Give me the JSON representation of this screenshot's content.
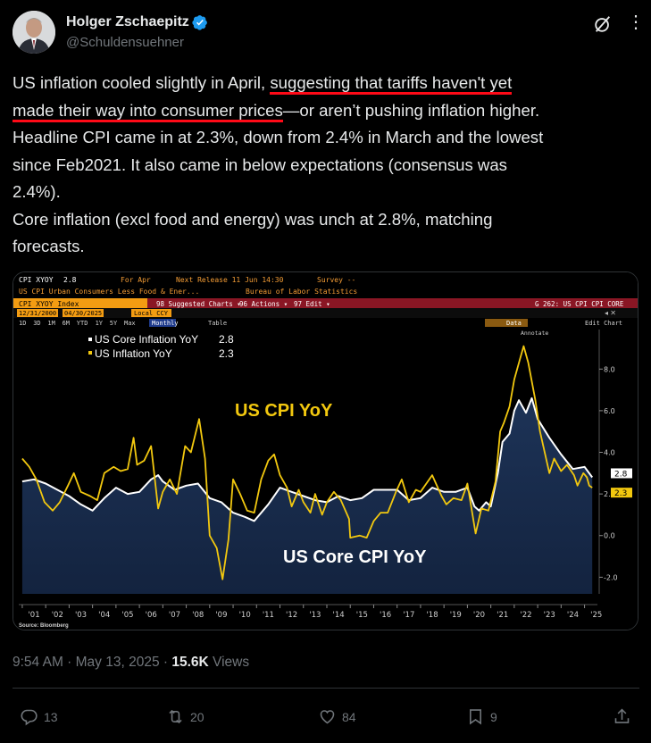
{
  "author": {
    "name": "Holger Zschaepitz",
    "handle": "@Schuldensuehner"
  },
  "tweet": {
    "line1_pre": "US inflation cooled slightly in April, ",
    "line1_ul": "suggesting that tariffs haven't yet",
    "line2_ul": "made their way into consumer prices",
    "line2_post": "—or aren’t pushing inflation higher.",
    "line3": "Headline CPI came in at 2.3%, down from 2.4% in March and the lowest",
    "line4": "since Feb2021. It also came in below expectations (consensus was",
    "line5": "2.4%).",
    "line6": "Core inflation (excl food and energy) was unch at 2.8%, matching",
    "line7": "forecasts."
  },
  "bloomberg": {
    "ticker": "CPI XYOY",
    "ticker_value": "2.8",
    "for_label": "For Apr",
    "next_release": "Next Release 11 Jun 14:30",
    "survey": "Survey --",
    "subtitle": "US CPI Urban Consumers Less Food & Ener...",
    "source_agency": "Bureau of Labor Statistics",
    "index_label": "CPI XYOY Index",
    "menu_suggested": "98 Suggested Charts ▾",
    "menu_actions": "96 Actions ▾",
    "menu_edit": "97 Edit ▾",
    "menu_g": "G 262: US CPI CPI CORE",
    "date_from": "12/31/2000",
    "date_to": "04/30/2025",
    "currency": "Local CCY",
    "periods": [
      "1D",
      "3D",
      "1M",
      "6M",
      "YTD",
      "1Y",
      "5Y",
      "Max"
    ],
    "freq": "Monthly",
    "table_btn": "Table",
    "edit_chart": "Edit Chart",
    "data_btn": "Data",
    "annotate": "Annotate",
    "source": "Source: Bloomberg"
  },
  "chart_data": {
    "type": "line",
    "title": "US CPI YoY",
    "annotation_core": "US Core CPI YoY",
    "ylim": [
      -2.8,
      9.9
    ],
    "yticks": [
      "8.0",
      "6.0",
      "4.0",
      "2.0",
      "0.0",
      "-2.0"
    ],
    "xticks": [
      "'01",
      "'02",
      "'03",
      "'04",
      "'05",
      "'06",
      "'07",
      "'08",
      "'09",
      "'10",
      "'11",
      "'12",
      "'13",
      "'14",
      "'15",
      "'16",
      "'17",
      "'18",
      "'19",
      "'20",
      "'21",
      "'22",
      "'23",
      "'24",
      "'25"
    ],
    "series": [
      {
        "name": "US Core Inflation YoY",
        "last": "2.8",
        "color": "#ffffff",
        "points": [
          [
            2001,
            2.6
          ],
          [
            2001.5,
            2.7
          ],
          [
            2002,
            2.5
          ],
          [
            2002.5,
            2.2
          ],
          [
            2003,
            1.9
          ],
          [
            2003.5,
            1.5
          ],
          [
            2004,
            1.2
          ],
          [
            2004.5,
            1.8
          ],
          [
            2005,
            2.3
          ],
          [
            2005.5,
            2.0
          ],
          [
            2006,
            2.1
          ],
          [
            2006.5,
            2.7
          ],
          [
            2006.8,
            2.9
          ],
          [
            2007,
            2.6
          ],
          [
            2007.5,
            2.2
          ],
          [
            2008,
            2.4
          ],
          [
            2008.5,
            2.5
          ],
          [
            2009,
            1.8
          ],
          [
            2009.5,
            1.6
          ],
          [
            2010,
            1.1
          ],
          [
            2010.5,
            0.9
          ],
          [
            2010.9,
            0.7
          ],
          [
            2011.5,
            1.5
          ],
          [
            2012,
            2.3
          ],
          [
            2012.5,
            2.1
          ],
          [
            2013,
            1.9
          ],
          [
            2013.5,
            1.7
          ],
          [
            2014,
            1.6
          ],
          [
            2014.5,
            1.9
          ],
          [
            2015,
            1.7
          ],
          [
            2015.5,
            1.8
          ],
          [
            2016,
            2.2
          ],
          [
            2016.5,
            2.2
          ],
          [
            2017,
            2.2
          ],
          [
            2017.5,
            1.7
          ],
          [
            2018,
            1.8
          ],
          [
            2018.5,
            2.3
          ],
          [
            2019,
            2.1
          ],
          [
            2019.5,
            2.1
          ],
          [
            2020,
            2.3
          ],
          [
            2020.3,
            1.4
          ],
          [
            2020.5,
            1.2
          ],
          [
            2020.8,
            1.6
          ],
          [
            2021,
            1.4
          ],
          [
            2021.3,
            3.0
          ],
          [
            2021.5,
            4.5
          ],
          [
            2021.8,
            4.9
          ],
          [
            2022,
            6.0
          ],
          [
            2022.2,
            6.5
          ],
          [
            2022.5,
            5.9
          ],
          [
            2022.75,
            6.6
          ],
          [
            2023,
            5.6
          ],
          [
            2023.5,
            4.7
          ],
          [
            2024,
            3.9
          ],
          [
            2024.5,
            3.2
          ],
          [
            2025,
            3.3
          ],
          [
            2025.33,
            2.8
          ]
        ]
      },
      {
        "name": "US Inflation YoY",
        "last": "2.3",
        "color": "#f2c80f",
        "points": [
          [
            2001,
            3.7
          ],
          [
            2001.3,
            3.3
          ],
          [
            2001.6,
            2.7
          ],
          [
            2001.95,
            1.6
          ],
          [
            2002.3,
            1.2
          ],
          [
            2002.6,
            1.6
          ],
          [
            2002.95,
            2.4
          ],
          [
            2003.2,
            3.0
          ],
          [
            2003.5,
            2.1
          ],
          [
            2003.9,
            1.9
          ],
          [
            2004.2,
            1.7
          ],
          [
            2004.5,
            3.0
          ],
          [
            2004.9,
            3.3
          ],
          [
            2005.2,
            3.1
          ],
          [
            2005.5,
            3.2
          ],
          [
            2005.75,
            4.7
          ],
          [
            2005.9,
            3.4
          ],
          [
            2006.2,
            3.6
          ],
          [
            2006.5,
            4.3
          ],
          [
            2006.8,
            1.3
          ],
          [
            2007,
            2.1
          ],
          [
            2007.3,
            2.7
          ],
          [
            2007.6,
            2.0
          ],
          [
            2007.95,
            4.3
          ],
          [
            2008.2,
            4.0
          ],
          [
            2008.55,
            5.6
          ],
          [
            2008.8,
            3.7
          ],
          [
            2009,
            0.0
          ],
          [
            2009.3,
            -0.6
          ],
          [
            2009.55,
            -2.1
          ],
          [
            2009.8,
            -0.2
          ],
          [
            2010,
            2.7
          ],
          [
            2010.3,
            2.0
          ],
          [
            2010.6,
            1.2
          ],
          [
            2010.9,
            1.1
          ],
          [
            2011.2,
            2.7
          ],
          [
            2011.5,
            3.6
          ],
          [
            2011.75,
            3.9
          ],
          [
            2012,
            2.9
          ],
          [
            2012.3,
            2.3
          ],
          [
            2012.5,
            1.4
          ],
          [
            2012.8,
            2.2
          ],
          [
            2013,
            1.6
          ],
          [
            2013.3,
            1.1
          ],
          [
            2013.5,
            2.0
          ],
          [
            2013.8,
            1.0
          ],
          [
            2014,
            1.6
          ],
          [
            2014.3,
            2.1
          ],
          [
            2014.6,
            1.7
          ],
          [
            2014.95,
            0.8
          ],
          [
            2015,
            -0.1
          ],
          [
            2015.4,
            0.0
          ],
          [
            2015.7,
            -0.1
          ],
          [
            2016,
            0.7
          ],
          [
            2016.3,
            1.1
          ],
          [
            2016.6,
            1.1
          ],
          [
            2016.95,
            2.1
          ],
          [
            2017.2,
            2.7
          ],
          [
            2017.5,
            1.6
          ],
          [
            2017.8,
            2.2
          ],
          [
            2018,
            2.1
          ],
          [
            2018.5,
            2.9
          ],
          [
            2018.9,
            1.9
          ],
          [
            2019.1,
            1.5
          ],
          [
            2019.4,
            1.8
          ],
          [
            2019.75,
            1.7
          ],
          [
            2020,
            2.5
          ],
          [
            2020.35,
            0.1
          ],
          [
            2020.6,
            1.3
          ],
          [
            2020.9,
            1.2
          ],
          [
            2021.2,
            2.6
          ],
          [
            2021.4,
            5.0
          ],
          [
            2021.55,
            5.4
          ],
          [
            2021.8,
            6.2
          ],
          [
            2022,
            7.5
          ],
          [
            2022.25,
            8.5
          ],
          [
            2022.4,
            9.1
          ],
          [
            2022.6,
            8.3
          ],
          [
            2022.9,
            6.5
          ],
          [
            2023.1,
            5.0
          ],
          [
            2023.5,
            3.0
          ],
          [
            2023.7,
            3.7
          ],
          [
            2024,
            3.1
          ],
          [
            2024.25,
            3.4
          ],
          [
            2024.55,
            2.9
          ],
          [
            2024.7,
            2.4
          ],
          [
            2024.95,
            3.0
          ],
          [
            2025.1,
            2.8
          ],
          [
            2025.2,
            2.4
          ],
          [
            2025.33,
            2.3
          ]
        ]
      }
    ]
  },
  "meta": {
    "time": "9:54 AM · May 13, 2025 · ",
    "views_count": "15.6K",
    "views_label": " Views"
  },
  "actions": {
    "replies": "13",
    "reposts": "20",
    "likes": "84",
    "bookmarks": "9"
  }
}
